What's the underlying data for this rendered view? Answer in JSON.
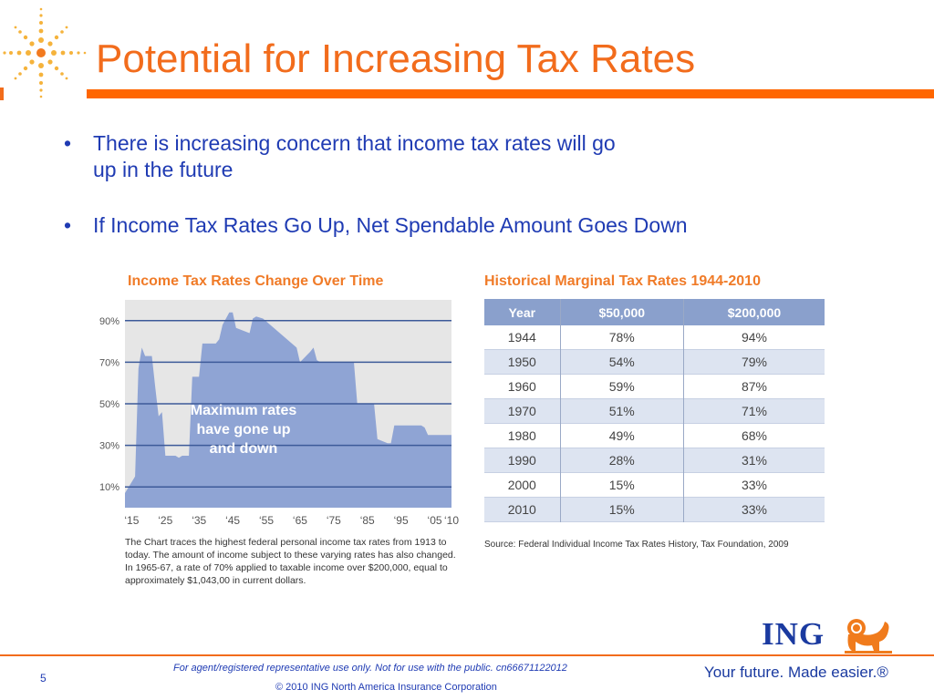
{
  "slide": {
    "title": "Potential for Increasing Tax Rates",
    "bullets": [
      {
        "line1": "There is increasing concern that income tax rates will go",
        "line2": "up in the future"
      },
      {
        "line1": "If Income Tax Rates Go Up, Net Spendable Amount Goes Down"
      }
    ],
    "bullet_symbol": "•",
    "page_number": "5"
  },
  "chart_data": {
    "type": "area",
    "title": "Income Tax Rates Change Over Time",
    "annotation": [
      "Maximum rates",
      "have gone up",
      "and down"
    ],
    "yticks": [
      "90%",
      "70%",
      "50%",
      "30%",
      "10%"
    ],
    "ytick_values": [
      90,
      70,
      50,
      30,
      10
    ],
    "xticks": [
      "‘15",
      "‘25",
      "‘35",
      "‘45",
      "‘55",
      "‘65",
      "‘75",
      "‘85",
      "‘95",
      "‘05",
      "‘10"
    ],
    "xtick_years": [
      1915,
      1925,
      1935,
      1945,
      1955,
      1965,
      1975,
      1985,
      1995,
      2005,
      2010
    ],
    "xlim": [
      1913,
      2010
    ],
    "ylim": [
      0,
      100
    ],
    "grid": true,
    "color": "#8fa4d4",
    "x": [
      1913,
      1916,
      1917,
      1918,
      1919,
      1921,
      1922,
      1923,
      1924,
      1925,
      1926,
      1927,
      1928,
      1929,
      1930,
      1932,
      1933,
      1935,
      1936,
      1940,
      1941,
      1942,
      1944,
      1945,
      1946,
      1950,
      1951,
      1952,
      1954,
      1964,
      1965,
      1968,
      1969,
      1970,
      1971,
      1981,
      1982,
      1987,
      1988,
      1991,
      1992,
      1993,
      2001,
      2002,
      2003,
      2010
    ],
    "y": [
      7,
      15,
      67,
      77,
      73,
      73,
      58,
      44,
      46,
      25,
      25,
      25,
      25,
      24,
      25,
      25,
      63,
      63,
      79,
      79,
      81,
      88,
      94,
      94,
      86.5,
      84,
      91,
      92,
      91,
      77,
      70,
      75,
      77,
      71,
      70,
      70,
      50,
      50,
      33,
      31,
      31,
      39.6,
      39.6,
      38.6,
      35,
      35
    ],
    "note_lines": [
      "The Chart traces the highest federal personal income tax rates from 1913 to",
      "today. The amount of income subject to these varying rates has also changed.",
      "In 1965-67, a rate of 70% applied to taxable income over $200,000, equal to",
      "approximately $1,043,00 in current dollars."
    ]
  },
  "table": {
    "title": "Historical Marginal Tax Rates 1944-2010",
    "headers": [
      "Year",
      "$50,000",
      "$200,000"
    ],
    "rows": [
      [
        "1944",
        "78%",
        "94%"
      ],
      [
        "1950",
        "54%",
        "79%"
      ],
      [
        "1960",
        "59%",
        "87%"
      ],
      [
        "1970",
        "51%",
        "71%"
      ],
      [
        "1980",
        "49%",
        "68%"
      ],
      [
        "1990",
        "28%",
        "31%"
      ],
      [
        "2000",
        "15%",
        "33%"
      ],
      [
        "2010",
        "15%",
        "33%"
      ]
    ],
    "source": "Source: Federal Individual Income Tax Rates History, Tax Foundation, 2009"
  },
  "footer": {
    "disclaimer": "For agent/registered representative use only. Not for use with the public. cn66671122012",
    "copyright": "© 2010 ING North America Insurance Corporation",
    "logo_text": "ING",
    "tagline": "Your future. Made easier.®"
  },
  "colors": {
    "title_orange": "#f26c1c",
    "text_blue": "#1f3bb3",
    "chart_fill": "#8fa4d4",
    "table_header": "#8aa0cc",
    "table_stripe": "#dde4f1"
  },
  "icons": [
    "starburst-logo-icon",
    "ing-lion-icon"
  ]
}
